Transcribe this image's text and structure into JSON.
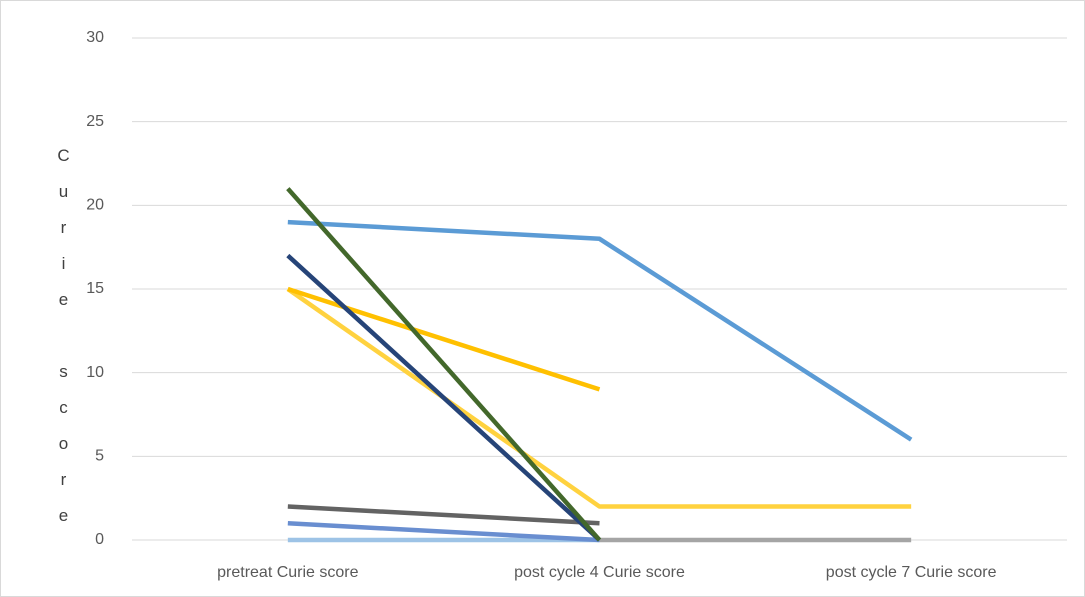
{
  "chart_data": {
    "type": "line",
    "y_label": "Curie score",
    "categories": [
      "pretreat Curie score",
      "post cycle 4 Curie score",
      "post cycle 7 Curie score"
    ],
    "series": [
      {
        "color": "#5b9bd5",
        "values": [
          19,
          18,
          6
        ]
      },
      {
        "color": "#9dc3e6",
        "values": [
          0,
          0,
          null
        ]
      },
      {
        "color": "#a5a5a5",
        "values": [
          null,
          0,
          0
        ]
      },
      {
        "color": "#ffd23f",
        "values": [
          15,
          2,
          2
        ]
      },
      {
        "color": "#ffc000",
        "values": [
          15,
          9,
          null
        ]
      },
      {
        "color": "#636363",
        "values": [
          2,
          1,
          null
        ]
      },
      {
        "color": "#698ed0",
        "values": [
          1,
          0,
          null
        ]
      },
      {
        "color": "#264478",
        "values": [
          17,
          0,
          null
        ]
      },
      {
        "color": "#43682b",
        "values": [
          21,
          0,
          null
        ]
      }
    ],
    "ylim": [
      0,
      30
    ],
    "yticks": [
      0,
      5,
      10,
      15,
      20,
      25,
      30
    ],
    "grid": true
  }
}
